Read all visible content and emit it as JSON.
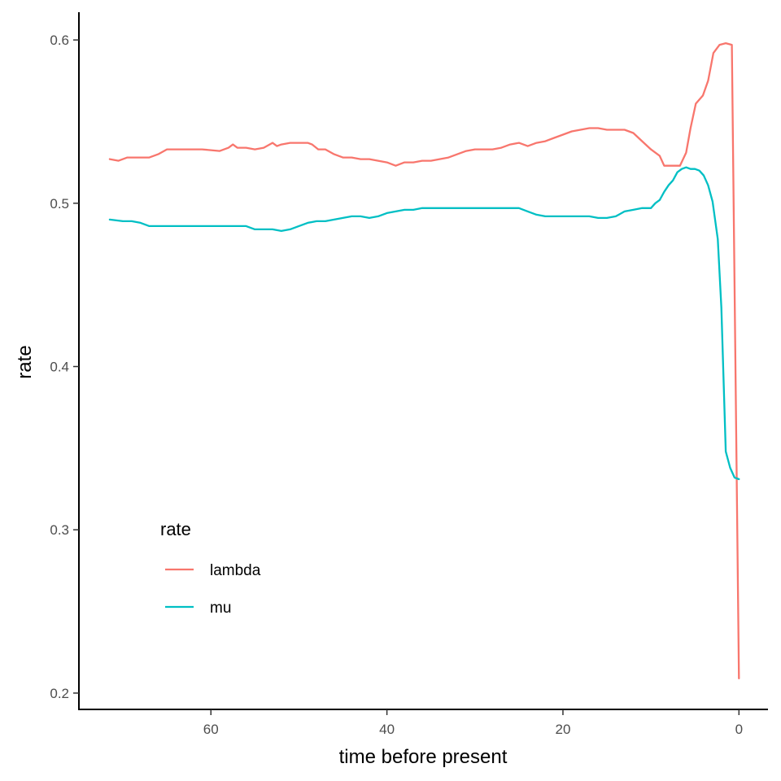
{
  "chart_data": {
    "type": "line",
    "title": "",
    "xlabel": "time before present",
    "ylabel": "rate",
    "xlim": [
      75,
      -3.3
    ],
    "ylim": [
      0.19,
      0.617
    ],
    "x_reversed": true,
    "x_ticks": [
      60,
      40,
      20,
      0
    ],
    "x_tick_labels": [
      "60",
      "40",
      "20",
      "0"
    ],
    "y_ticks": [
      0.2,
      0.3,
      0.4,
      0.5,
      0.6
    ],
    "y_tick_labels": [
      "0.2",
      "0.3",
      "0.4",
      "0.5",
      "0.6"
    ],
    "grid": false,
    "legend": {
      "title": "rate",
      "position": "bottom-left"
    },
    "series": [
      {
        "name": "lambda",
        "color": "#F8766D",
        "points": [
          [
            71.5,
            0.527
          ],
          [
            70.5,
            0.526
          ],
          [
            69.5,
            0.528
          ],
          [
            68,
            0.528
          ],
          [
            67,
            0.528
          ],
          [
            66,
            0.53
          ],
          [
            65,
            0.533
          ],
          [
            63,
            0.533
          ],
          [
            61,
            0.533
          ],
          [
            59,
            0.532
          ],
          [
            58,
            0.534
          ],
          [
            57.5,
            0.536
          ],
          [
            57,
            0.534
          ],
          [
            56,
            0.534
          ],
          [
            55,
            0.533
          ],
          [
            54,
            0.534
          ],
          [
            53,
            0.537
          ],
          [
            52.5,
            0.535
          ],
          [
            52,
            0.536
          ],
          [
            51,
            0.537
          ],
          [
            50,
            0.537
          ],
          [
            49,
            0.537
          ],
          [
            48.5,
            0.536
          ],
          [
            47.8,
            0.533
          ],
          [
            47,
            0.533
          ],
          [
            46,
            0.53
          ],
          [
            45,
            0.528
          ],
          [
            44,
            0.528
          ],
          [
            43,
            0.527
          ],
          [
            42,
            0.527
          ],
          [
            41,
            0.526
          ],
          [
            40,
            0.525
          ],
          [
            39,
            0.523
          ],
          [
            38,
            0.525
          ],
          [
            37,
            0.525
          ],
          [
            36,
            0.526
          ],
          [
            35,
            0.526
          ],
          [
            34,
            0.527
          ],
          [
            33,
            0.528
          ],
          [
            32,
            0.53
          ],
          [
            31,
            0.532
          ],
          [
            30,
            0.533
          ],
          [
            29,
            0.533
          ],
          [
            28,
            0.533
          ],
          [
            27,
            0.534
          ],
          [
            26,
            0.536
          ],
          [
            25,
            0.537
          ],
          [
            24,
            0.535
          ],
          [
            23,
            0.537
          ],
          [
            22,
            0.538
          ],
          [
            21,
            0.54
          ],
          [
            20,
            0.542
          ],
          [
            19,
            0.544
          ],
          [
            18,
            0.545
          ],
          [
            17,
            0.546
          ],
          [
            16,
            0.546
          ],
          [
            15,
            0.545
          ],
          [
            14,
            0.545
          ],
          [
            13,
            0.545
          ],
          [
            12,
            0.543
          ],
          [
            11,
            0.538
          ],
          [
            10,
            0.533
          ],
          [
            9,
            0.529
          ],
          [
            8.5,
            0.523
          ],
          [
            7.5,
            0.523
          ],
          [
            6.7,
            0.523
          ],
          [
            6,
            0.531
          ],
          [
            5.5,
            0.546
          ],
          [
            4.9,
            0.561
          ],
          [
            4.1,
            0.566
          ],
          [
            3.5,
            0.575
          ],
          [
            2.9,
            0.592
          ],
          [
            2.2,
            0.597
          ],
          [
            1.5,
            0.598
          ],
          [
            0.8,
            0.597
          ],
          [
            0,
            0.209
          ]
        ]
      },
      {
        "name": "mu",
        "color": "#00BFC4",
        "points": [
          [
            71.5,
            0.49
          ],
          [
            70,
            0.489
          ],
          [
            69,
            0.489
          ],
          [
            68,
            0.488
          ],
          [
            67,
            0.486
          ],
          [
            66,
            0.486
          ],
          [
            64,
            0.486
          ],
          [
            62,
            0.486
          ],
          [
            60,
            0.486
          ],
          [
            58,
            0.486
          ],
          [
            56,
            0.486
          ],
          [
            55,
            0.484
          ],
          [
            54,
            0.484
          ],
          [
            53,
            0.484
          ],
          [
            52,
            0.483
          ],
          [
            51,
            0.484
          ],
          [
            50,
            0.486
          ],
          [
            49,
            0.488
          ],
          [
            48,
            0.489
          ],
          [
            47,
            0.489
          ],
          [
            46,
            0.49
          ],
          [
            45,
            0.491
          ],
          [
            44,
            0.492
          ],
          [
            43,
            0.492
          ],
          [
            42,
            0.491
          ],
          [
            41,
            0.492
          ],
          [
            40,
            0.494
          ],
          [
            39,
            0.495
          ],
          [
            38,
            0.496
          ],
          [
            37,
            0.496
          ],
          [
            36,
            0.497
          ],
          [
            35,
            0.497
          ],
          [
            34,
            0.497
          ],
          [
            33,
            0.497
          ],
          [
            32,
            0.497
          ],
          [
            31,
            0.497
          ],
          [
            30,
            0.497
          ],
          [
            29,
            0.497
          ],
          [
            28,
            0.497
          ],
          [
            27,
            0.497
          ],
          [
            26,
            0.497
          ],
          [
            25,
            0.497
          ],
          [
            24,
            0.495
          ],
          [
            23,
            0.493
          ],
          [
            22,
            0.492
          ],
          [
            21,
            0.492
          ],
          [
            20,
            0.492
          ],
          [
            19,
            0.492
          ],
          [
            18,
            0.492
          ],
          [
            17,
            0.492
          ],
          [
            16,
            0.491
          ],
          [
            15,
            0.491
          ],
          [
            14,
            0.492
          ],
          [
            13,
            0.495
          ],
          [
            12,
            0.496
          ],
          [
            11,
            0.497
          ],
          [
            10,
            0.497
          ],
          [
            9.5,
            0.5
          ],
          [
            9,
            0.502
          ],
          [
            8.5,
            0.507
          ],
          [
            8,
            0.511
          ],
          [
            7.5,
            0.514
          ],
          [
            7,
            0.519
          ],
          [
            6.5,
            0.521
          ],
          [
            6,
            0.522
          ],
          [
            5.5,
            0.521
          ],
          [
            5,
            0.521
          ],
          [
            4.5,
            0.52
          ],
          [
            4,
            0.517
          ],
          [
            3.5,
            0.511
          ],
          [
            3,
            0.501
          ],
          [
            2.4,
            0.478
          ],
          [
            2,
            0.436
          ],
          [
            1.5,
            0.348
          ],
          [
            1,
            0.338
          ],
          [
            0.5,
            0.332
          ],
          [
            0,
            0.331
          ]
        ]
      }
    ]
  }
}
